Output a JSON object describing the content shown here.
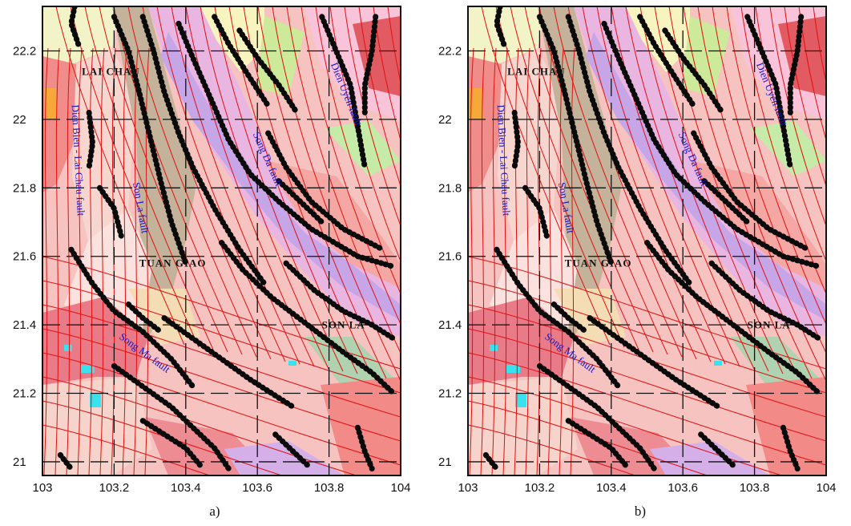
{
  "panels": [
    {
      "id": "a",
      "caption": "a)"
    },
    {
      "id": "b",
      "caption": "b)"
    }
  ],
  "axes": {
    "x_ticks": [
      "103",
      "103.2",
      "103.4",
      "103.6",
      "103.8",
      "104"
    ],
    "y_ticks": [
      "21",
      "21.2",
      "21.4",
      "21.6",
      "21.8",
      "22",
      "22.2"
    ],
    "xlim": [
      103,
      104
    ],
    "ylim": [
      20.96,
      22.33
    ]
  },
  "places": [
    {
      "label": "LAI CHAU",
      "lon": 103.11,
      "lat": 22.13
    },
    {
      "label": "TUAN GIAO",
      "lon": 103.27,
      "lat": 21.57
    },
    {
      "label": "SON LA",
      "lon": 103.78,
      "lat": 21.39
    }
  ],
  "faults": [
    {
      "label": "Dien Bien - Lai Chau fault",
      "lon": 103.09,
      "lat": 21.88,
      "angle": 87
    },
    {
      "label": "Son La fault",
      "lon": 103.265,
      "lat": 21.74,
      "angle": 80
    },
    {
      "label": "Song Da fault",
      "lon": 103.62,
      "lat": 21.88,
      "angle": 66
    },
    {
      "label": "Song Ma fault",
      "lon": 103.28,
      "lat": 21.31,
      "angle": 36
    },
    {
      "label": "Dien Uyen fault",
      "lon": 103.84,
      "lat": 22.07,
      "angle": 68
    }
  ],
  "colors": {
    "grid": "#111111",
    "fault_lines": "#e01010",
    "lineaments": "#0a0a0a",
    "fault_label": "#1515c8",
    "frame": "#111111"
  }
}
